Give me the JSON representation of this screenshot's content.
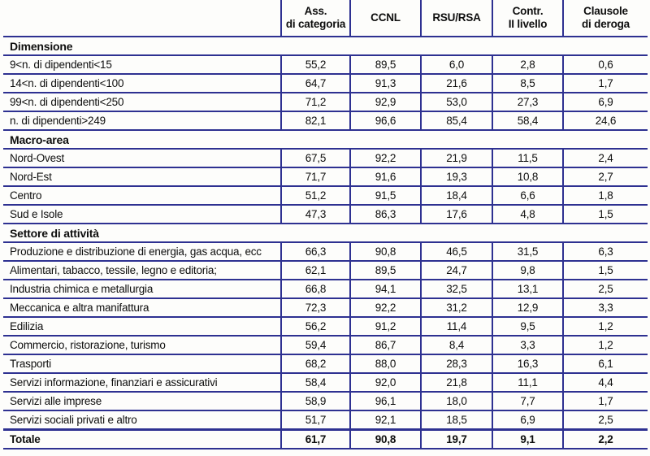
{
  "table": {
    "columns": [
      {
        "label": "Ass.\ndi categoria"
      },
      {
        "label": "CCNL"
      },
      {
        "label": "RSU/RSA"
      },
      {
        "label": "Contr.\nII livello"
      },
      {
        "label": "Clausole\ndi deroga"
      }
    ],
    "sections": [
      {
        "title": "Dimensione",
        "rows": [
          {
            "label": "9<n. di dipendenti<15",
            "values": [
              "55,2",
              "89,5",
              "6,0",
              "2,8",
              "0,6"
            ]
          },
          {
            "label": "14<n. di dipendenti<100",
            "values": [
              "64,7",
              "91,3",
              "21,6",
              "8,5",
              "1,7"
            ]
          },
          {
            "label": "99<n. di dipendenti<250",
            "values": [
              "71,2",
              "92,9",
              "53,0",
              "27,3",
              "6,9"
            ]
          },
          {
            "label": "n. di dipendenti>249",
            "values": [
              "82,1",
              "96,6",
              "85,4",
              "58,4",
              "24,6"
            ]
          }
        ]
      },
      {
        "title": "Macro-area",
        "rows": [
          {
            "label": "Nord-Ovest",
            "values": [
              "67,5",
              "92,2",
              "21,9",
              "11,5",
              "2,4"
            ]
          },
          {
            "label": "Nord-Est",
            "values": [
              "71,7",
              "91,6",
              "19,3",
              "10,8",
              "2,7"
            ]
          },
          {
            "label": "Centro",
            "values": [
              "51,2",
              "91,5",
              "18,4",
              "6,6",
              "1,8"
            ]
          },
          {
            "label": "Sud e Isole",
            "values": [
              "47,3",
              "86,3",
              "17,6",
              "4,8",
              "1,5"
            ]
          }
        ]
      },
      {
        "title": "Settore di attività",
        "rows": [
          {
            "label": "Produzione e distribuzione di energia, gas acqua, ecc",
            "values": [
              "66,3",
              "90,8",
              "46,5",
              "31,5",
              "6,3"
            ]
          },
          {
            "label": "Alimentari, tabacco, tessile, legno e editoria;",
            "values": [
              "62,1",
              "89,5",
              "24,7",
              "9,8",
              "1,5"
            ]
          },
          {
            "label": "Industria chimica e metallurgia",
            "values": [
              "66,8",
              "94,1",
              "32,5",
              "13,1",
              "2,5"
            ]
          },
          {
            "label": "Meccanica e altra manifattura",
            "values": [
              "72,3",
              "92,2",
              "31,2",
              "12,9",
              "3,3"
            ]
          },
          {
            "label": "Edilizia",
            "values": [
              "56,2",
              "91,2",
              "11,4",
              "9,5",
              "1,2"
            ]
          },
          {
            "label": "Commercio, ristorazione, turismo",
            "values": [
              "59,4",
              "86,7",
              "8,4",
              "3,3",
              "1,2"
            ]
          },
          {
            "label": "Trasporti",
            "values": [
              "68,2",
              "88,0",
              "28,3",
              "16,3",
              "6,1"
            ]
          },
          {
            "label": "Servizi informazione, finanziari e assicurativi",
            "values": [
              "58,4",
              "92,0",
              "21,8",
              "11,1",
              "4,4"
            ]
          },
          {
            "label": "Servizi alle imprese",
            "values": [
              "58,9",
              "96,1",
              "18,0",
              "7,7",
              "1,7"
            ]
          },
          {
            "label": "Servizi sociali privati e altro",
            "values": [
              "51,7",
              "92,1",
              "18,5",
              "6,9",
              "2,5"
            ]
          }
        ]
      }
    ],
    "total_row": {
      "label": "Totale",
      "values": [
        "61,7",
        "90,8",
        "19,7",
        "9,1",
        "2,2"
      ]
    }
  },
  "colors": {
    "line": "#2e3191",
    "text": "#0e0e0e",
    "background": "#fdfdfb"
  }
}
